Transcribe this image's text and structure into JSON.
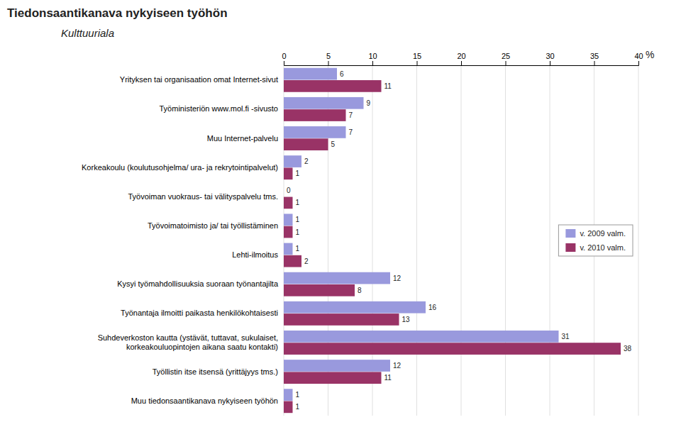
{
  "chart_data": {
    "type": "bar",
    "orientation": "horizontal",
    "title": "Tiedonsaantikanava nykyiseen työhön",
    "subtitle": "Kulttuuriala",
    "xlabel": "%",
    "categories": [
      "Yrityksen tai organisaation omat Internet-sivut",
      "Työministeriön www.mol.fi -sivusto",
      "Muu Internet-palvelu",
      "Korkeakoulu (koulutusohjelma/ ura- ja rekrytointipalvelut)",
      "Työvoiman vuokraus- tai välityspalvelu tms.",
      "Työvoimatoimisto ja/ tai työllistäminen",
      "Lehti-ilmoitus",
      "Kysyi työmahdollisuuksia suoraan työnantajilta",
      "Työnantaja ilmoitti paikasta henkilökohtaisesti",
      "Suhdeverkoston kautta (ystävät, tuttavat, sukulaiset,\nkorkeakouluopintojen aikana saatu kontakti)",
      "Työllistin itse itsensä (yrittäjyys tms.)",
      "Muu tiedonsaantikanava nykyiseen työhön"
    ],
    "series": [
      {
        "name": "v. 2009 valm.",
        "color": "#9999dd",
        "values": [
          6,
          9,
          7,
          2,
          0,
          1,
          1,
          12,
          16,
          31,
          12,
          1
        ]
      },
      {
        "name": "v. 2010 valm.",
        "color": "#993366",
        "values": [
          11,
          7,
          5,
          1,
          1,
          1,
          2,
          8,
          13,
          38,
          11,
          1
        ]
      }
    ],
    "xlim": [
      0,
      40
    ],
    "xticks": [
      0,
      5,
      10,
      15,
      20,
      25,
      30,
      35,
      40
    ],
    "grid": true,
    "legend": "right",
    "data_labels": true
  }
}
